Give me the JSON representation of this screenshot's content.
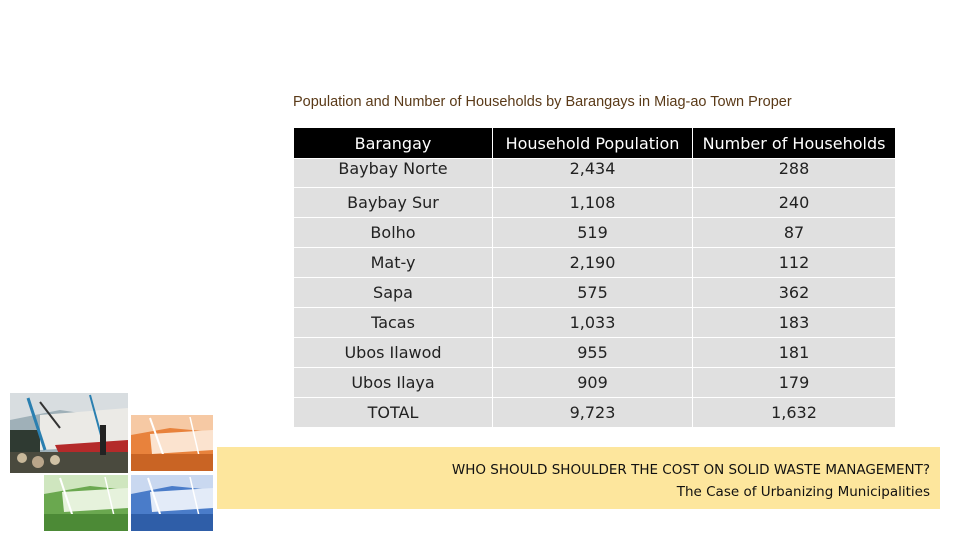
{
  "table": {
    "title": "Population and Number of Households by Barangays in Miag-ao Town Proper",
    "headers": [
      "Barangay",
      "Household Population",
      "Number of Households"
    ],
    "rows": [
      [
        "Baybay Norte",
        "2,434",
        "288"
      ],
      [
        "Baybay Sur",
        "1,108",
        "240"
      ],
      [
        "Bolho",
        "519",
        "87"
      ],
      [
        "Mat-y",
        "2,190",
        "112"
      ],
      [
        "Sapa",
        "575",
        "362"
      ],
      [
        "Tacas",
        "1,033",
        "183"
      ],
      [
        "Ubos Ilawod",
        "955",
        "181"
      ],
      [
        "Ubos Ilaya",
        "909",
        "179"
      ],
      [
        "TOTAL",
        "9,723",
        "1,632"
      ]
    ]
  },
  "banner": {
    "line1": "WHO SHOULD SHOULDER THE COST ON SOLID WASTE MANAGEMENT?",
    "line2": "The Case of Urbanizing Municipalities"
  },
  "colors": {
    "header_bg": "#000000",
    "cell_bg": "#e0e0e0",
    "title_color": "#5a3a18",
    "banner_bg": "#fde69d"
  }
}
